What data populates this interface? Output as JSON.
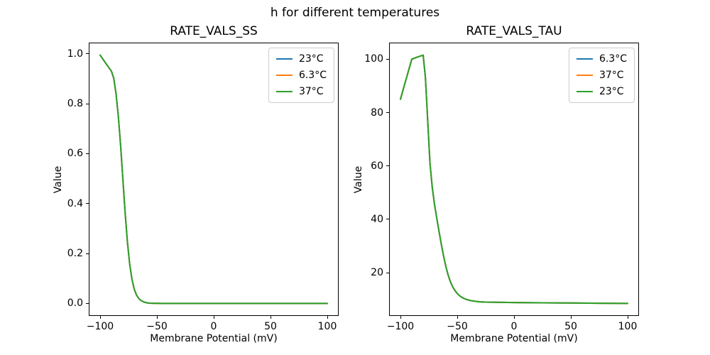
{
  "figure": {
    "suptitle": "h for different temperatures"
  },
  "colors": {
    "series_blue": "#1f77b4",
    "series_orange": "#ff7f0e",
    "series_green": "#2ca02c",
    "axis": "#000000",
    "legend_border": "#cccccc",
    "background": "#ffffff"
  },
  "chart_data": [
    {
      "type": "line",
      "title": "RATE_VALS_SS",
      "xlabel": "Membrane Potential (mV)",
      "ylabel": "Value",
      "xlim": [
        -110,
        110
      ],
      "ylim": [
        -0.05,
        1.045
      ],
      "grid": false,
      "xticks": [
        -100,
        -50,
        0,
        50,
        100
      ],
      "xtick_labels": [
        "−100",
        "−50",
        "0",
        "50",
        "100"
      ],
      "yticks": [
        0.0,
        0.2,
        0.4,
        0.6,
        0.8,
        1.0
      ],
      "ytick_labels": [
        "0.0",
        "0.2",
        "0.4",
        "0.6",
        "0.8",
        "1.0"
      ],
      "legend": {
        "position": "upper right",
        "entries": [
          {
            "label": "23°C",
            "color": "#1f77b4"
          },
          {
            "label": "6.3°C",
            "color": "#ff7f0e"
          },
          {
            "label": "37°C",
            "color": "#2ca02c"
          }
        ]
      },
      "overlap_note": "All three temperature curves coincide exactly; only the last-drawn green line is visible.",
      "x": [
        -100,
        -95,
        -90,
        -88,
        -86,
        -84,
        -82,
        -80,
        -78,
        -76,
        -74,
        -72,
        -70,
        -68,
        -66,
        -64,
        -62,
        -60,
        -58,
        -56,
        -54,
        -52,
        -50,
        -45,
        -40,
        -30,
        -20,
        -10,
        0,
        25,
        50,
        75,
        100
      ],
      "shared_y": [
        0.995,
        0.962,
        0.93,
        0.902,
        0.841,
        0.752,
        0.636,
        0.5,
        0.365,
        0.248,
        0.159,
        0.098,
        0.058,
        0.034,
        0.02,
        0.012,
        0.007,
        0.004,
        0.002,
        0.0012,
        0.0008,
        0.0006,
        0.0004,
        0.0002,
        0.0001,
        0.0001,
        0.0001,
        0.0001,
        0.0001,
        0.0001,
        0.0001,
        0.0001,
        0.0001
      ],
      "series_labels": [
        "23°C",
        "6.3°C",
        "37°C"
      ]
    },
    {
      "type": "line",
      "title": "RATE_VALS_TAU",
      "xlabel": "Membrane Potential (mV)",
      "ylabel": "Value",
      "xlim": [
        -110,
        110
      ],
      "ylim": [
        3.8,
        106.2
      ],
      "grid": false,
      "xticks": [
        -100,
        -50,
        0,
        50,
        100
      ],
      "xtick_labels": [
        "−100",
        "−50",
        "0",
        "50",
        "100"
      ],
      "yticks": [
        20,
        40,
        60,
        80,
        100
      ],
      "ytick_labels": [
        "20",
        "40",
        "60",
        "80",
        "100"
      ],
      "legend": {
        "position": "upper right",
        "entries": [
          {
            "label": "6.3°C",
            "color": "#1f77b4"
          },
          {
            "label": "37°C",
            "color": "#ff7f0e"
          },
          {
            "label": "23°C",
            "color": "#2ca02c"
          }
        ]
      },
      "overlap_note": "All three temperature curves coincide exactly; only the last-drawn green line is visible.",
      "x": [
        -100,
        -95,
        -90,
        -85,
        -80,
        -78,
        -76,
        -74,
        -72,
        -70,
        -68,
        -66,
        -64,
        -62,
        -60,
        -58,
        -56,
        -54,
        -52,
        -50,
        -48,
        -46,
        -44,
        -42,
        -40,
        -38,
        -36,
        -34,
        -32,
        -30,
        -25,
        -20,
        -10,
        0,
        25,
        50,
        75,
        100
      ],
      "shared_y": [
        85.0,
        92.5,
        100.0,
        100.8,
        101.5,
        93.0,
        77.0,
        61.0,
        52.0,
        45.5,
        40.4,
        35.4,
        30.6,
        26.2,
        22.3,
        19.1,
        16.6,
        14.7,
        13.3,
        12.2,
        11.4,
        10.8,
        10.35,
        10.0,
        9.75,
        9.55,
        9.4,
        9.28,
        9.18,
        9.1,
        9.0,
        8.95,
        8.88,
        8.82,
        8.72,
        8.65,
        8.57,
        8.5
      ],
      "series_labels": [
        "6.3°C",
        "37°C",
        "23°C"
      ]
    }
  ]
}
